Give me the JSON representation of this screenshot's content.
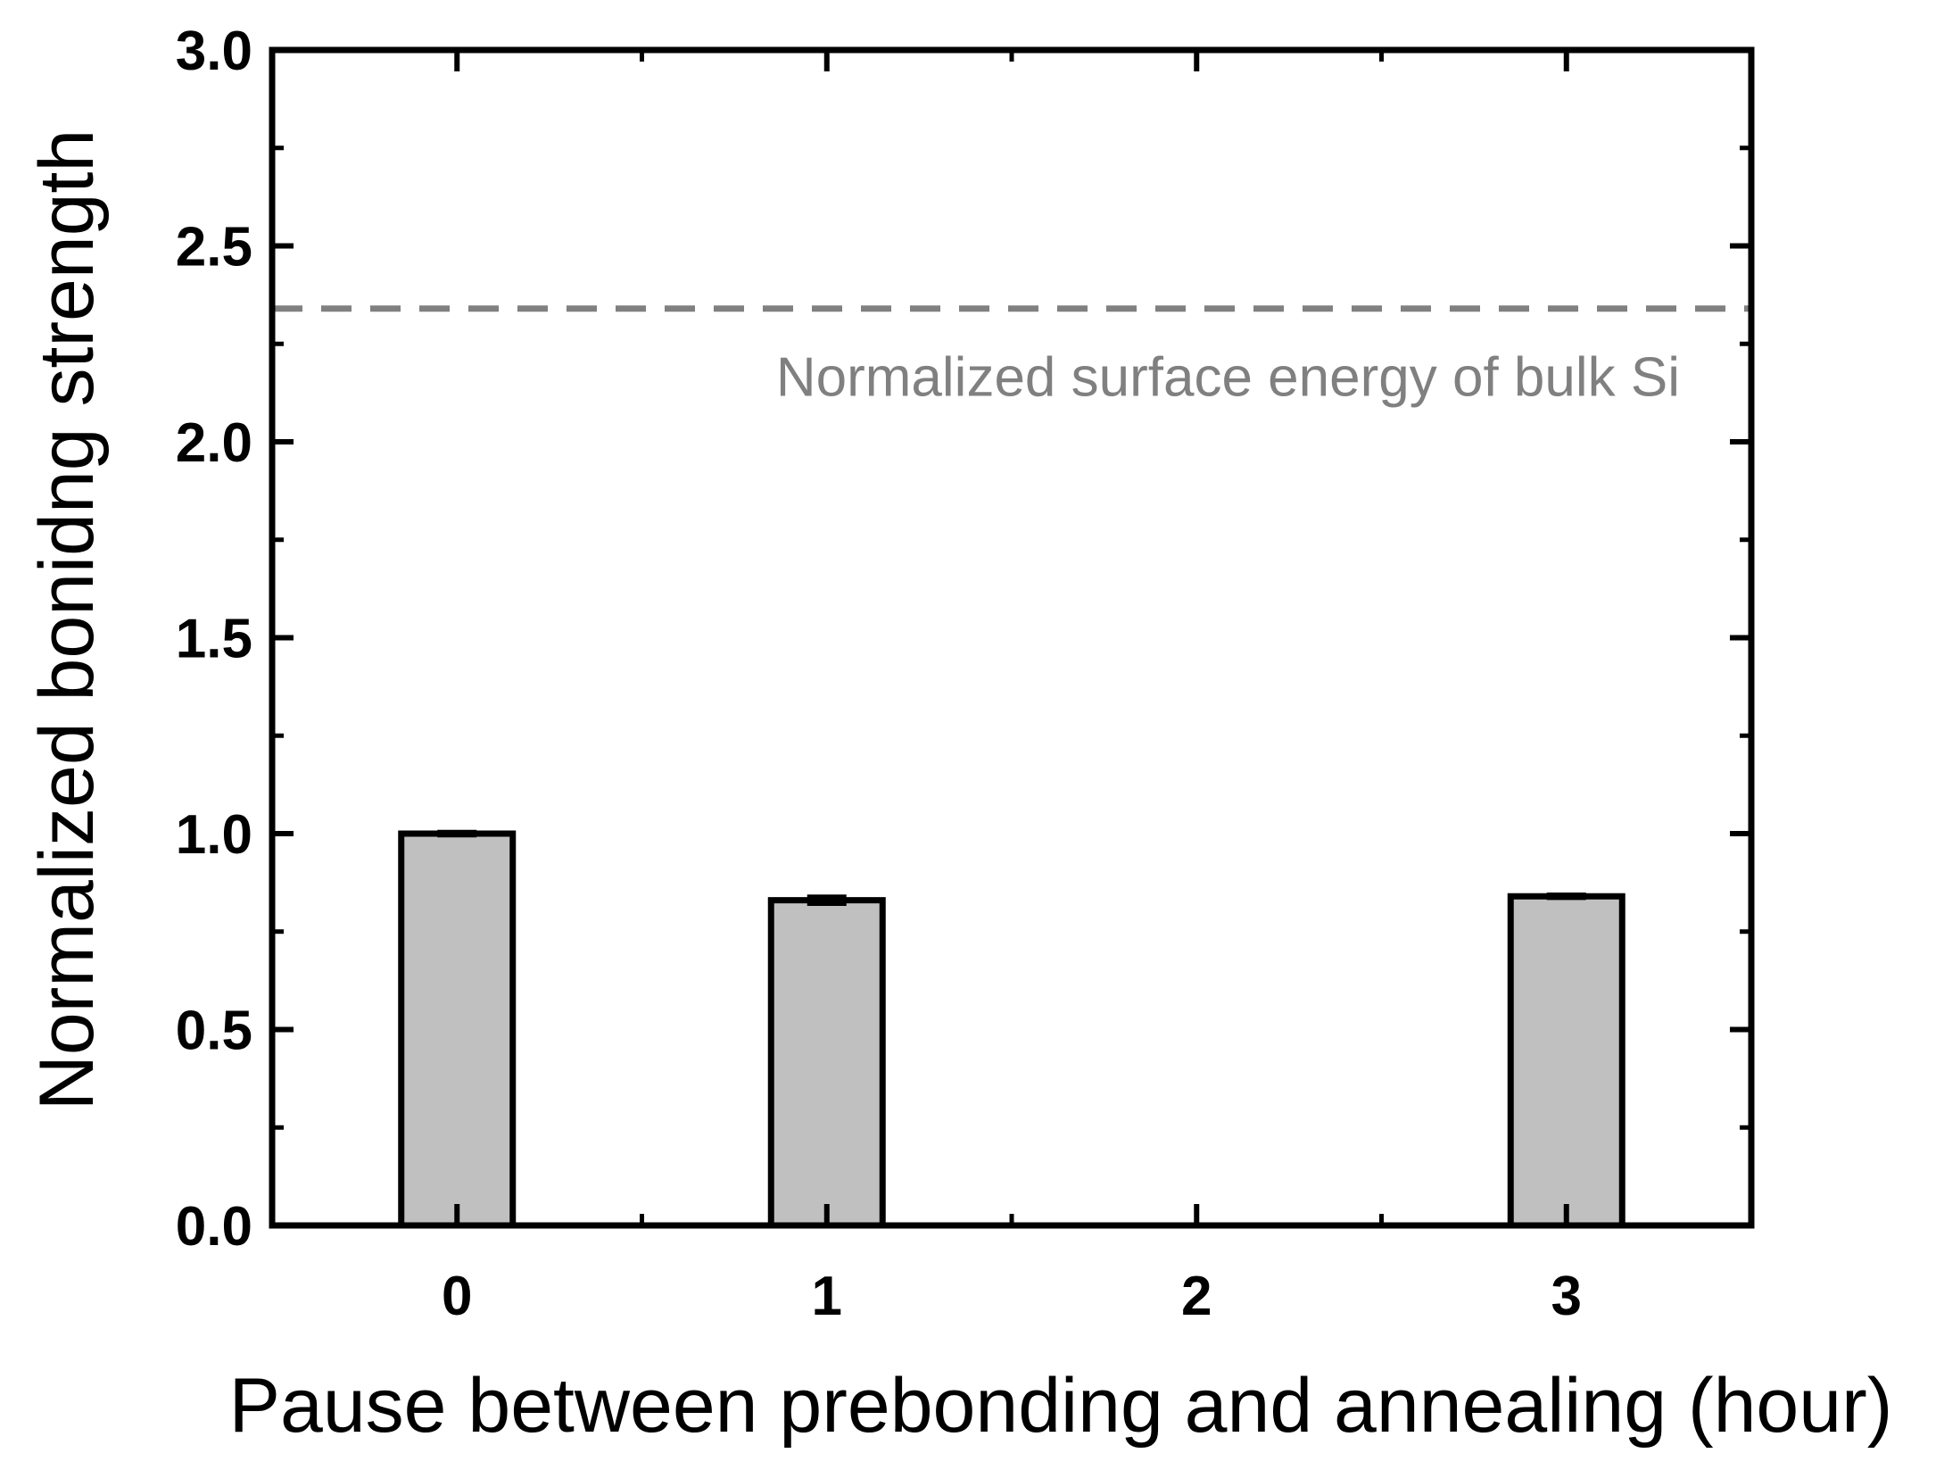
{
  "chart_data": {
    "type": "bar",
    "title": "",
    "xlabel": "Pause between prebonding and annealing (hour)",
    "ylabel": "Normalized bonidng strength",
    "x": [
      0,
      1,
      3
    ],
    "values": [
      1.0,
      0.83,
      0.84
    ],
    "errors": [
      0.005,
      0.01,
      0.005
    ],
    "xlim": [
      -0.5,
      3.5
    ],
    "ylim": [
      0.0,
      3.0
    ],
    "xticks": [
      "0",
      "1",
      "2",
      "3"
    ],
    "yticks": [
      "0.0",
      "0.5",
      "1.0",
      "1.5",
      "2.0",
      "2.5",
      "3.0"
    ],
    "bar_color": "#c0c0c0",
    "edge_color": "#000000",
    "reference_line": {
      "value": 2.34,
      "label": "Normalized surface energy of bulk Si",
      "color": "#808080",
      "style": "dashed"
    },
    "grid": false,
    "legend": "none"
  }
}
